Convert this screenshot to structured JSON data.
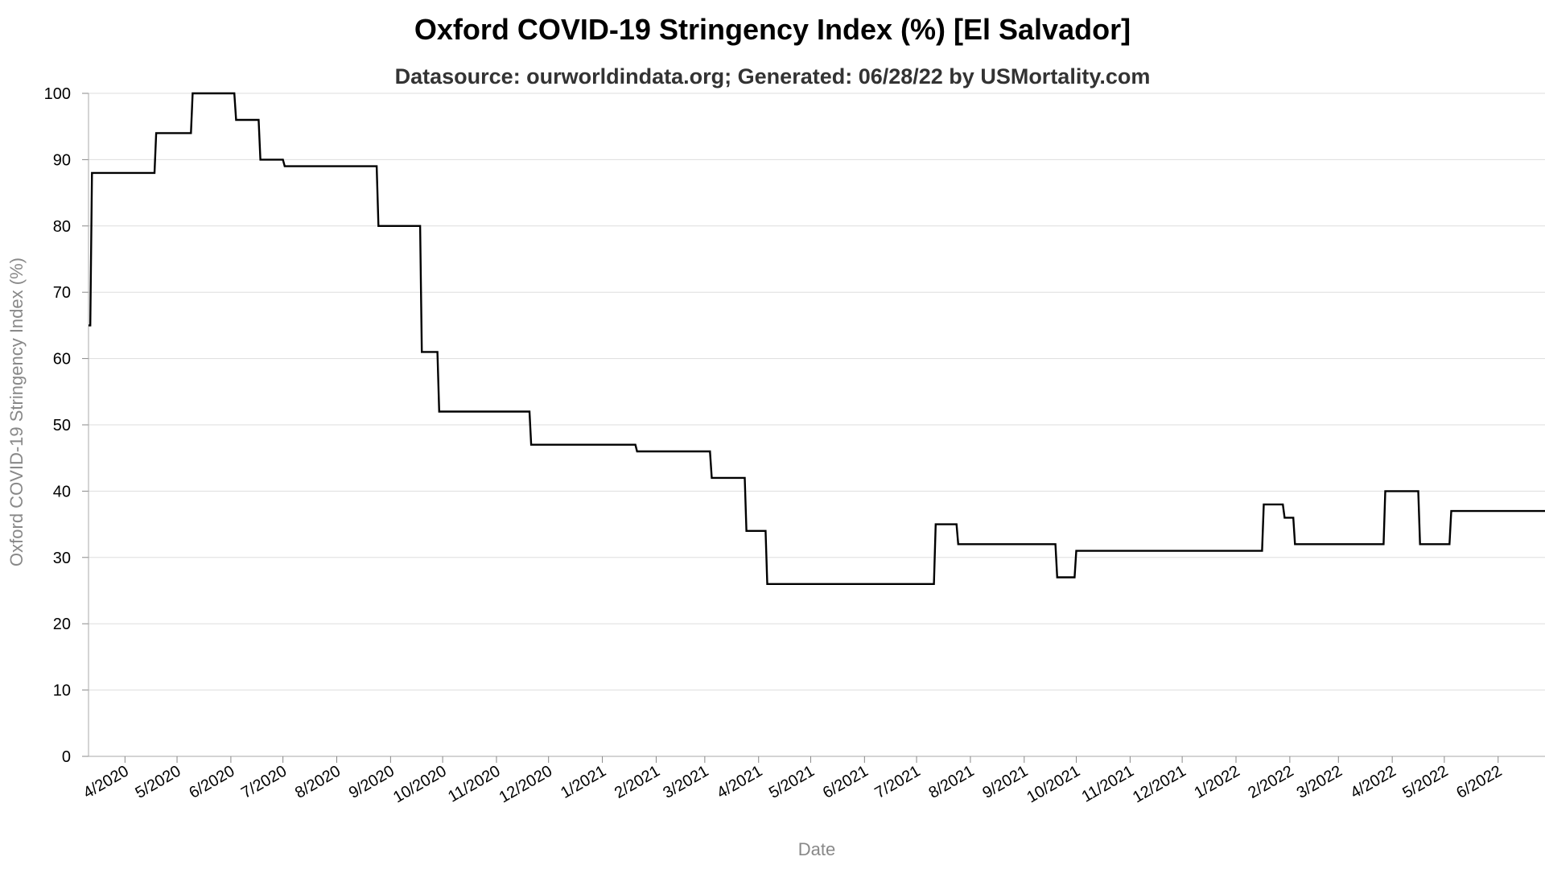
{
  "chart_data": {
    "type": "line",
    "title": "Oxford COVID-19 Stringency Index (%) [El Salvador]",
    "subtitle": "Datasource: ourworldindata.org; Generated: 06/28/22 by USMortality.com",
    "xlabel": "Date",
    "ylabel": "Oxford COVID-19 Stringency Index (%)",
    "ylim": [
      0,
      100
    ],
    "xlim": [
      "2020-03-11",
      "2022-06-28"
    ],
    "y_ticks": [
      0,
      10,
      20,
      30,
      40,
      50,
      60,
      70,
      80,
      90,
      100
    ],
    "x_ticks": [
      {
        "date": "2020-04-01",
        "label": "4/2020"
      },
      {
        "date": "2020-05-01",
        "label": "5/2020"
      },
      {
        "date": "2020-06-01",
        "label": "6/2020"
      },
      {
        "date": "2020-07-01",
        "label": "7/2020"
      },
      {
        "date": "2020-08-01",
        "label": "8/2020"
      },
      {
        "date": "2020-09-01",
        "label": "9/2020"
      },
      {
        "date": "2020-10-01",
        "label": "10/2020"
      },
      {
        "date": "2020-11-01",
        "label": "11/2020"
      },
      {
        "date": "2020-12-01",
        "label": "12/2020"
      },
      {
        "date": "2021-01-01",
        "label": "1/2021"
      },
      {
        "date": "2021-02-01",
        "label": "2/2021"
      },
      {
        "date": "2021-03-01",
        "label": "3/2021"
      },
      {
        "date": "2021-04-01",
        "label": "4/2021"
      },
      {
        "date": "2021-05-01",
        "label": "5/2021"
      },
      {
        "date": "2021-06-01",
        "label": "6/2021"
      },
      {
        "date": "2021-07-01",
        "label": "7/2021"
      },
      {
        "date": "2021-08-01",
        "label": "8/2021"
      },
      {
        "date": "2021-09-01",
        "label": "9/2021"
      },
      {
        "date": "2021-10-01",
        "label": "10/2021"
      },
      {
        "date": "2021-11-01",
        "label": "11/2021"
      },
      {
        "date": "2021-12-01",
        "label": "12/2021"
      },
      {
        "date": "2022-01-01",
        "label": "1/2022"
      },
      {
        "date": "2022-02-01",
        "label": "2/2022"
      },
      {
        "date": "2022-03-01",
        "label": "3/2022"
      },
      {
        "date": "2022-04-01",
        "label": "4/2022"
      },
      {
        "date": "2022-05-01",
        "label": "5/2022"
      },
      {
        "date": "2022-06-01",
        "label": "6/2022"
      }
    ],
    "grid": true,
    "line_color": "#000000",
    "grid_color": "#dddddd",
    "series": [
      {
        "x": [
          "2020-03-11",
          "2020-03-12",
          "2020-03-13",
          "2020-04-18",
          "2020-04-19",
          "2020-05-09",
          "2020-05-10",
          "2020-06-03",
          "2020-06-04",
          "2020-06-17",
          "2020-06-18",
          "2020-07-01",
          "2020-07-02",
          "2020-08-24",
          "2020-08-25",
          "2020-09-18",
          "2020-09-19",
          "2020-09-28",
          "2020-09-29",
          "2020-11-20",
          "2020-11-21",
          "2021-01-20",
          "2021-01-21",
          "2021-03-04",
          "2021-03-05",
          "2021-03-24",
          "2021-03-25",
          "2021-04-05",
          "2021-04-06",
          "2021-07-11",
          "2021-07-12",
          "2021-07-24",
          "2021-07-25",
          "2021-09-19",
          "2021-09-20",
          "2021-09-30",
          "2021-10-01",
          "2022-01-16",
          "2022-01-17",
          "2022-01-28",
          "2022-01-29",
          "2022-02-03",
          "2022-02-04",
          "2022-03-27",
          "2022-03-28",
          "2022-04-16",
          "2022-04-17",
          "2022-05-04",
          "2022-05-05",
          "2022-06-28"
        ],
        "y": [
          65,
          65,
          88,
          88,
          94,
          94,
          100,
          100,
          96,
          96,
          90,
          90,
          89,
          89,
          80,
          80,
          61,
          61,
          52,
          52,
          47,
          47,
          46,
          46,
          42,
          42,
          34,
          34,
          26,
          26,
          35,
          35,
          32,
          32,
          27,
          27,
          31,
          31,
          38,
          38,
          36,
          36,
          32,
          32,
          40,
          40,
          32,
          32,
          37,
          37
        ]
      }
    ]
  }
}
